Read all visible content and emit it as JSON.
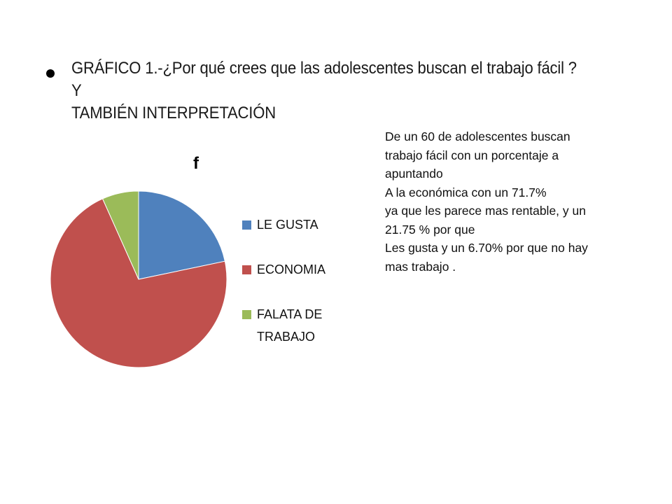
{
  "slide": {
    "heading_lines": [
      "GRÁFICO 1.-¿Por qué crees que las adolescentes  buscan el trabajo fácil ? Y",
      "TAMBIÉN INTERPRETACIÓN"
    ],
    "interpretation_lines": [
      "De un 60 de adolescentes buscan",
      " trabajo fácil con un porcentaje a",
      "apuntando",
      "A la económica  con un 71.7%",
      "ya que les parece mas rentable, y un",
      "21.75 % por que",
      "Les gusta y un 6.70% por que no hay",
      "mas trabajo ."
    ]
  },
  "chart_data": {
    "type": "pie",
    "title": "f",
    "categories": [
      "LE GUSTA",
      "ECONOMIA",
      "FALATA DE TRABAJO"
    ],
    "values": [
      21.75,
      71.7,
      6.7
    ],
    "colors": [
      "#4F81BD",
      "#C0504D",
      "#9BBB59"
    ],
    "start_angle_deg": 0,
    "direction": "clockwise",
    "legend_position": "right",
    "legend_labels": [
      [
        "LE GUSTA"
      ],
      [
        "ECONOMIA"
      ],
      [
        "FALATA DE",
        "TRABAJO"
      ]
    ]
  }
}
